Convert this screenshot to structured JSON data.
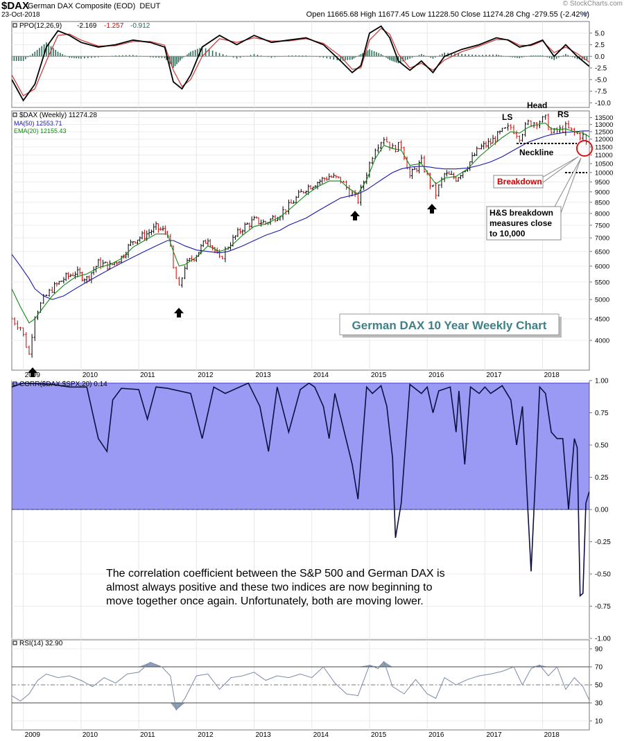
{
  "header": {
    "symbol": "$DAX",
    "name": "German DAX Composite (EOD)",
    "exchange": "DEUT",
    "date": "23-Oct-2018",
    "watermark": "© StockCharts.com",
    "quote": "Open 11665.68  High 11677.45  Low 11228.50  Close 11274.28  Chg -279.55 (-2.42%)"
  },
  "colors": {
    "up": "#000000",
    "down": "#cc0000",
    "ma50": "#1a1aaa",
    "ema20": "#118811",
    "ppo_hist": "#2a6b54",
    "corr_fill": "#9a9af5",
    "rsi": "#7a8aa8",
    "annotation": "#cc0000"
  },
  "chart_data": [
    {
      "type": "line",
      "panel": "PPO",
      "legend": [
        "PPO(12,26,9)",
        "-2.169",
        "-1.257",
        "-0.912"
      ],
      "ylim": [
        -11,
        7.5
      ],
      "yticks": [
        "5.0",
        "2.5",
        "0.0",
        "-2.5",
        "-5.0",
        "-7.5",
        "-10.0"
      ],
      "ytick_values": [
        5.0,
        2.5,
        0.0,
        -2.5,
        -5.0,
        -7.5,
        -10.0
      ],
      "x": [
        2008.8,
        2009.0,
        2009.2,
        2009.4,
        2009.6,
        2009.8,
        2010.0,
        2010.3,
        2010.6,
        2010.9,
        2011.2,
        2011.45,
        2011.6,
        2011.75,
        2011.9,
        2012.1,
        2012.4,
        2012.7,
        2013.0,
        2013.3,
        2013.6,
        2013.9,
        2014.2,
        2014.5,
        2014.7,
        2014.85,
        2015.0,
        2015.2,
        2015.35,
        2015.5,
        2015.7,
        2015.9,
        2016.1,
        2016.3,
        2016.6,
        2016.9,
        2017.2,
        2017.4,
        2017.6,
        2017.8,
        2018.0,
        2018.2,
        2018.4,
        2018.6,
        2018.81
      ],
      "series": [
        {
          "values": [
            -5.0,
            -9.5,
            -6.0,
            2.0,
            5.5,
            4.5,
            3.0,
            2.0,
            2.5,
            3.5,
            3.0,
            2.0,
            -5.5,
            -7.0,
            -4.0,
            2.0,
            4.5,
            2.5,
            4.5,
            3.0,
            3.5,
            4.0,
            2.5,
            -1.0,
            -3.5,
            -2.0,
            5.0,
            6.5,
            4.0,
            -1.0,
            -3.0,
            -1.0,
            -3.5,
            0.0,
            1.5,
            2.5,
            4.0,
            3.5,
            2.0,
            2.5,
            3.5,
            0.0,
            2.5,
            0.0,
            -2.169
          ]
        },
        {
          "values": [
            -4.0,
            -8.5,
            -7.0,
            -1.0,
            4.5,
            4.8,
            3.5,
            2.2,
            2.3,
            3.2,
            3.2,
            2.4,
            -3.0,
            -6.5,
            -5.0,
            0.0,
            3.8,
            3.0,
            4.0,
            3.3,
            3.3,
            3.8,
            2.8,
            0.0,
            -2.8,
            -2.5,
            3.5,
            6.0,
            4.8,
            0.5,
            -2.5,
            -1.5,
            -3.0,
            -0.8,
            1.0,
            2.2,
            3.6,
            3.6,
            2.4,
            2.3,
            3.3,
            0.8,
            2.0,
            0.6,
            -1.257
          ]
        },
        {
          "values": [
            -1.0,
            -1.0,
            1.0,
            3.0,
            1.0,
            -0.3,
            -0.5,
            -0.2,
            0.2,
            0.3,
            -0.2,
            -0.4,
            -2.5,
            -0.5,
            1.0,
            2.0,
            0.7,
            -0.5,
            0.5,
            -0.3,
            0.2,
            0.2,
            -0.3,
            -1.0,
            -0.7,
            0.5,
            1.5,
            0.5,
            -0.8,
            -1.5,
            -0.5,
            0.5,
            -0.5,
            0.8,
            0.5,
            0.3,
            0.4,
            -0.1,
            -0.4,
            0.2,
            0.2,
            -0.8,
            0.5,
            -0.6,
            -0.912
          ]
        }
      ]
    },
    {
      "type": "line",
      "panel": "Price",
      "legend": [
        "$DAX (Weekly) 11274.28",
        "MA(50) 12553.71",
        "EMA(20) 12155.43"
      ],
      "ylim": [
        3400,
        14000
      ],
      "yticks": [
        "13500",
        "13000",
        "12500",
        "12000",
        "11500",
        "11000",
        "10500",
        "10000",
        "9500",
        "9000",
        "8500",
        "8000",
        "7500",
        "7000",
        "6500",
        "6000",
        "5500",
        "5000",
        "4500",
        "4000"
      ],
      "ytick_values": [
        13500,
        13000,
        12500,
        12000,
        11500,
        11000,
        10500,
        10000,
        9500,
        9000,
        8500,
        8000,
        7500,
        7000,
        6500,
        6000,
        5500,
        5000,
        4500,
        4000
      ],
      "xticks": [
        "2009",
        "2010",
        "2011",
        "2012",
        "2013",
        "2014",
        "2015",
        "2016",
        "2017",
        "2018"
      ],
      "xtick_values": [
        2009,
        2010,
        2011,
        2012,
        2013,
        2014,
        2015,
        2016,
        2017,
        2018
      ],
      "x": [
        2008.8,
        2008.95,
        2009.1,
        2009.2,
        2009.35,
        2009.5,
        2009.7,
        2009.9,
        2010.1,
        2010.3,
        2010.5,
        2010.7,
        2010.9,
        2011.1,
        2011.3,
        2011.5,
        2011.6,
        2011.7,
        2011.8,
        2012.0,
        2012.2,
        2012.4,
        2012.55,
        2012.8,
        2013.0,
        2013.2,
        2013.45,
        2013.6,
        2013.9,
        2014.1,
        2014.3,
        2014.5,
        2014.65,
        2014.8,
        2014.95,
        2015.1,
        2015.25,
        2015.4,
        2015.55,
        2015.7,
        2015.9,
        2016.05,
        2016.15,
        2016.3,
        2016.5,
        2016.7,
        2016.9,
        2017.1,
        2017.3,
        2017.45,
        2017.6,
        2017.75,
        2017.9,
        2018.05,
        2018.15,
        2018.3,
        2018.4,
        2018.55,
        2018.7,
        2018.81
      ],
      "series": [
        {
          "name": "$DAX",
          "values": [
            4500,
            4300,
            3700,
            4600,
            5000,
            5300,
            5600,
            5800,
            5600,
            6100,
            6000,
            6300,
            6900,
            7100,
            7400,
            7200,
            5900,
            5300,
            6000,
            6400,
            7000,
            6200,
            6700,
            7400,
            7700,
            7600,
            8000,
            8300,
            9200,
            9500,
            9800,
            9600,
            9000,
            8600,
            10000,
            11500,
            12100,
            11400,
            11600,
            9800,
            10600,
            9400,
            8900,
            9900,
            9700,
            10400,
            11400,
            11800,
            12500,
            12800,
            12200,
            13100,
            13200,
            13400,
            12400,
            12600,
            12800,
            12400,
            12200,
            11274.28
          ]
        },
        {
          "name": "MA(50)",
          "values": [
            6400,
            6000,
            5600,
            5300,
            5100,
            5000,
            5100,
            5300,
            5500,
            5700,
            5900,
            6100,
            6300,
            6500,
            6700,
            6900,
            6900,
            6800,
            6700,
            6550,
            6500,
            6450,
            6500,
            6700,
            6900,
            7100,
            7300,
            7500,
            7800,
            8100,
            8400,
            8700,
            8800,
            8900,
            9100,
            9400,
            9700,
            10000,
            10200,
            10300,
            10350,
            10300,
            10250,
            10200,
            10200,
            10250,
            10400,
            10600,
            10900,
            11200,
            11500,
            11800,
            12000,
            12200,
            12300,
            12400,
            12450,
            12500,
            12550,
            12553.71
          ]
        },
        {
          "name": "EMA(20)",
          "values": [
            5300,
            4800,
            4400,
            4500,
            4800,
            5100,
            5400,
            5650,
            5750,
            5950,
            6050,
            6250,
            6650,
            6900,
            7150,
            7150,
            6500,
            6000,
            6050,
            6300,
            6700,
            6500,
            6600,
            7100,
            7450,
            7550,
            7850,
            8150,
            8850,
            9250,
            9550,
            9550,
            9150,
            8900,
            9600,
            10800,
            11600,
            11400,
            11300,
            10400,
            10500,
            9800,
            9400,
            9700,
            9800,
            10200,
            10900,
            11500,
            12100,
            12500,
            12400,
            12800,
            13000,
            13100,
            12700,
            12650,
            12700,
            12500,
            12400,
            12155.43
          ]
        }
      ]
    },
    {
      "type": "area",
      "panel": "CORR",
      "legend": [
        "CORR($DAX,$SPX,20) 0.14"
      ],
      "ylim": [
        -1.0,
        1.0
      ],
      "yticks": [
        "1.00",
        "0.75",
        "0.50",
        "0.25",
        "0.00",
        "-0.25",
        "-0.50",
        "-0.75",
        "-1.00"
      ],
      "ytick_values": [
        1.0,
        0.75,
        0.5,
        0.25,
        0.0,
        -0.25,
        -0.5,
        -0.75,
        -1.0
      ],
      "x": [
        2008.8,
        2009.0,
        2009.5,
        2009.8,
        2010.1,
        2010.3,
        2010.45,
        2010.55,
        2010.7,
        2011.0,
        2011.15,
        2011.3,
        2011.5,
        2011.9,
        2012.1,
        2012.3,
        2012.5,
        2012.9,
        2013.1,
        2013.25,
        2013.4,
        2013.6,
        2013.8,
        2013.95,
        2014.05,
        2014.2,
        2014.3,
        2014.4,
        2014.7,
        2014.8,
        2014.95,
        2015.05,
        2015.2,
        2015.3,
        2015.4,
        2015.45,
        2015.55,
        2015.7,
        2015.9,
        2016.0,
        2016.1,
        2016.2,
        2016.4,
        2016.5,
        2016.55,
        2016.65,
        2016.75,
        2016.9,
        2017.0,
        2017.1,
        2017.3,
        2017.45,
        2017.55,
        2017.65,
        2017.8,
        2017.95,
        2018.05,
        2018.15,
        2018.25,
        2018.35,
        2018.45,
        2018.55,
        2018.6,
        2018.65,
        2018.7,
        2018.75,
        2018.81
      ],
      "values": [
        0.95,
        0.98,
        0.97,
        0.95,
        0.95,
        0.55,
        0.45,
        0.85,
        0.94,
        0.93,
        0.7,
        0.95,
        0.94,
        0.9,
        0.55,
        0.95,
        0.9,
        0.98,
        0.8,
        0.45,
        0.95,
        0.6,
        0.93,
        0.98,
        0.95,
        0.8,
        0.55,
        0.9,
        0.35,
        0.08,
        0.95,
        0.9,
        0.96,
        0.8,
        0.4,
        -0.22,
        0.05,
        0.97,
        0.9,
        0.95,
        0.75,
        0.92,
        0.95,
        0.6,
        0.92,
        0.35,
        0.95,
        0.9,
        0.95,
        0.9,
        0.96,
        0.85,
        0.5,
        0.8,
        -0.48,
        0.95,
        0.9,
        0.6,
        0.55,
        0.55,
        0.0,
        0.55,
        0.48,
        -0.67,
        -0.65,
        0.05,
        0.14
      ]
    },
    {
      "type": "line",
      "panel": "RSI",
      "legend": [
        "RSI(14) 32.90"
      ],
      "ylim": [
        0,
        100
      ],
      "yticks": [
        "90",
        "70",
        "50",
        "30",
        "10"
      ],
      "ytick_values": [
        90,
        70,
        50,
        30,
        10
      ],
      "xticks": [
        "2009",
        "2010",
        "2011",
        "2012",
        "2013",
        "2014",
        "2015",
        "2016",
        "2017",
        "2018"
      ],
      "xtick_values": [
        2009,
        2010,
        2011,
        2012,
        2013,
        2014,
        2015,
        2016,
        2017,
        2018
      ],
      "x": [
        2008.8,
        2008.95,
        2009.1,
        2009.25,
        2009.4,
        2009.6,
        2009.8,
        2010.0,
        2010.2,
        2010.4,
        2010.6,
        2010.8,
        2011.0,
        2011.2,
        2011.4,
        2011.55,
        2011.65,
        2011.8,
        2012.0,
        2012.2,
        2012.4,
        2012.6,
        2012.8,
        2013.0,
        2013.2,
        2013.4,
        2013.6,
        2013.8,
        2014.0,
        2014.2,
        2014.4,
        2014.6,
        2014.8,
        2015.0,
        2015.15,
        2015.25,
        2015.4,
        2015.6,
        2015.8,
        2016.0,
        2016.15,
        2016.3,
        2016.5,
        2016.7,
        2016.9,
        2017.1,
        2017.3,
        2017.5,
        2017.65,
        2017.8,
        2017.95,
        2018.1,
        2018.25,
        2018.4,
        2018.55,
        2018.7,
        2018.81
      ],
      "values": [
        38,
        32,
        40,
        55,
        62,
        58,
        60,
        55,
        48,
        58,
        52,
        62,
        64,
        75,
        70,
        60,
        22,
        35,
        60,
        62,
        45,
        58,
        60,
        64,
        55,
        60,
        58,
        62,
        58,
        70,
        52,
        40,
        38,
        72,
        68,
        76,
        48,
        40,
        56,
        40,
        35,
        58,
        50,
        56,
        60,
        62,
        65,
        70,
        50,
        68,
        72,
        60,
        70,
        45,
        58,
        48,
        32.9
      ]
    }
  ],
  "annotations": {
    "ls": "LS",
    "head": "Head",
    "rs": "RS",
    "neckline": "Neckline",
    "breakdown": "Breakdown",
    "hs_lines": [
      "H&S breakdown",
      "measures close",
      "to 10,000"
    ],
    "title_box": "German DAX 10 Year Weekly Chart",
    "corr_note": [
      "The correlation coefficient between the S&P 500 and German DAX is",
      "almost always positive and these two indices are now beginning to",
      "move together once again.  Unfortunately, both are moving lower."
    ]
  }
}
